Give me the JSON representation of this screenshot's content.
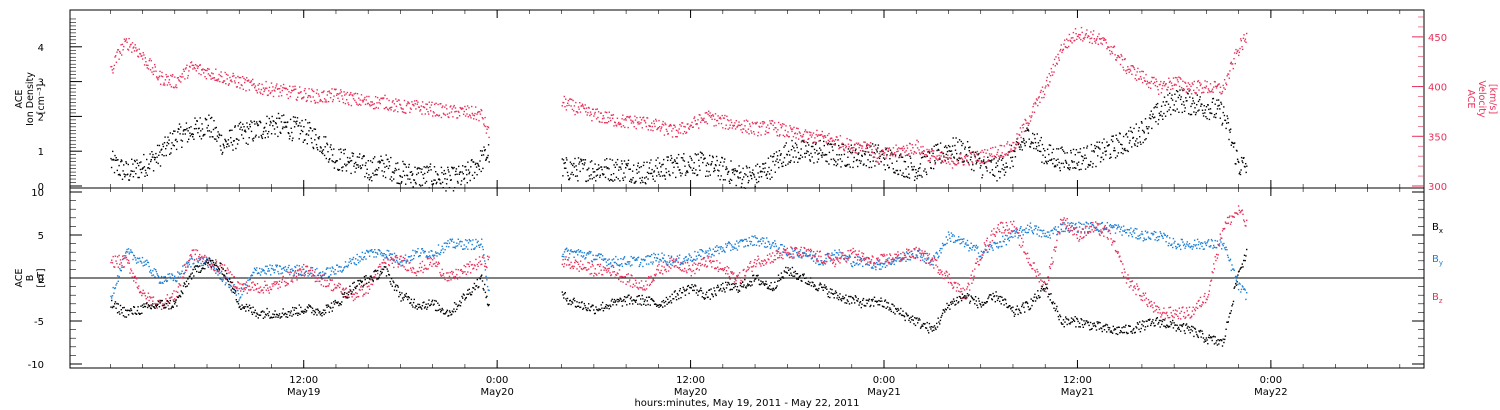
{
  "colors": {
    "black": "#000000",
    "red": "#e8305a",
    "blue": "#1a7fd6",
    "background": "#ffffff"
  },
  "chart_data": [
    {
      "panel": "top",
      "type": "scatter",
      "ylabel_left": [
        "ACE",
        "Ion Density",
        "[cm⁻³]"
      ],
      "ylabel_right": [
        "ACE",
        "Velocity",
        "[km/s]"
      ],
      "ylim_left": [
        0,
        5
      ],
      "yticks_left": [
        0,
        1,
        2,
        3,
        4
      ],
      "ylim_right": [
        300,
        475
      ],
      "yticks_right": [
        300,
        350,
        400,
        450
      ],
      "grid": false,
      "series": [
        {
          "axis": "left",
          "color": "#000000",
          "x_hours": [
            0,
            1,
            2,
            3,
            4,
            5,
            6,
            7,
            8,
            9,
            10,
            11,
            12,
            13,
            14,
            15,
            16,
            17,
            18,
            19,
            20,
            21,
            22,
            23.5,
            28,
            29,
            30,
            31,
            32,
            33,
            34,
            35,
            36,
            37,
            38,
            39,
            40,
            41,
            42,
            43,
            44,
            45,
            46,
            47.5,
            50,
            51,
            52,
            53,
            54,
            55,
            56,
            57,
            58,
            59,
            60,
            61,
            62,
            63,
            64,
            65,
            66,
            67,
            68,
            69,
            70,
            70.5
          ],
          "values": [
            0.7,
            0.4,
            0.6,
            0.9,
            1.4,
            1.6,
            1.8,
            1.2,
            1.5,
            1.6,
            1.8,
            1.7,
            1.6,
            1.3,
            0.8,
            0.7,
            0.5,
            0.6,
            0.4,
            0.3,
            0.3,
            0.2,
            0.3,
            1.0,
            0.5,
            0.5,
            0.5,
            0.5,
            0.5,
            0.4,
            0.5,
            0.6,
            0.7,
            0.6,
            0.5,
            0.3,
            0.3,
            0.6,
            1.0,
            1.0,
            1.0,
            0.9,
            0.9,
            0.9,
            0.5,
            0.8,
            1.1,
            1.0,
            0.6,
            0.5,
            0.9,
            1.5,
            0.9,
            0.8,
            0.8,
            0.9,
            1.1,
            1.3,
            1.6,
            2.1,
            2.5,
            2.4,
            2.3,
            2.1,
            0.6,
            0.6
          ]
        },
        {
          "axis": "right",
          "color": "#e8305a",
          "x_hours": [
            0,
            0.5,
            1,
            1.5,
            2,
            3,
            4,
            5,
            6,
            7,
            8,
            9,
            10,
            11,
            12,
            13,
            14,
            15,
            16,
            17,
            18,
            19,
            20,
            21,
            22,
            23,
            23.5,
            28,
            29,
            30,
            31,
            32,
            33,
            34,
            35,
            36,
            37,
            38,
            39,
            40,
            41,
            42,
            43,
            44,
            45,
            46,
            47,
            47.5,
            50,
            51,
            52,
            53,
            54,
            55,
            56,
            57,
            58,
            59,
            60,
            61,
            62,
            63,
            64,
            65,
            66,
            67,
            68,
            69,
            70,
            70.5
          ],
          "values": [
            415,
            435,
            445,
            440,
            430,
            410,
            405,
            420,
            415,
            410,
            405,
            400,
            398,
            395,
            393,
            390,
            392,
            388,
            385,
            385,
            380,
            380,
            378,
            375,
            375,
            372,
            350,
            385,
            378,
            372,
            368,
            365,
            365,
            360,
            355,
            362,
            370,
            365,
            362,
            358,
            360,
            355,
            350,
            350,
            346,
            340,
            342,
            330,
            340,
            330,
            325,
            328,
            330,
            335,
            340,
            370,
            400,
            440,
            455,
            450,
            440,
            420,
            410,
            400,
            405,
            400,
            400,
            398,
            440,
            450
          ]
        }
      ]
    },
    {
      "panel": "bottom",
      "type": "scatter",
      "ylabel_left": [
        "ACE",
        "B",
        "[nT]"
      ],
      "ylim": [
        -10,
        10
      ],
      "yticks": [
        -10,
        -5,
        0,
        5,
        10
      ],
      "zero_line": true,
      "grid": false,
      "legend_position": "right",
      "series": [
        {
          "name": "Bx",
          "label_text": "B",
          "label_sub": "x",
          "color": "#000000",
          "x_hours": [
            0,
            1,
            2,
            3,
            4,
            5,
            6,
            7,
            8,
            9,
            10,
            11,
            12,
            13,
            14,
            15,
            16,
            17,
            18,
            19,
            20,
            21,
            22,
            23,
            23.5,
            28,
            29,
            30,
            31,
            32,
            33,
            34,
            35,
            36,
            37,
            38,
            39,
            40,
            41,
            42,
            43,
            44,
            45,
            46,
            47,
            47.5,
            50,
            51,
            52,
            53,
            54,
            55,
            56,
            57,
            58,
            59,
            60,
            61,
            62,
            63,
            64,
            65,
            66,
            67,
            68,
            69,
            70,
            70.5
          ],
          "values": [
            -3,
            -4,
            -3.5,
            -3,
            -3,
            0.5,
            2,
            1,
            -3,
            -4,
            -4,
            -4,
            -3.5,
            -3.8,
            -3,
            -1,
            0,
            1,
            -2,
            -3,
            -3,
            -4,
            -2,
            0,
            -3.5,
            -2,
            -3,
            -3.5,
            -3,
            -2.5,
            -2.5,
            -3,
            -2,
            -1,
            -2,
            -1,
            -1,
            0,
            -1,
            1,
            0,
            -1,
            -2,
            -2.5,
            -3,
            -2.5,
            -5,
            -6,
            -3,
            -2,
            -3,
            -2,
            -4,
            -3,
            -1,
            -5,
            -5,
            -5.5,
            -6,
            -6,
            -5.5,
            -5,
            -5.5,
            -6,
            -7,
            -7.5,
            1,
            3
          ]
        },
        {
          "name": "By",
          "label_text": "B",
          "label_sub": "y",
          "color": "#1a7fd6",
          "x_hours": [
            0,
            1,
            2,
            3,
            4,
            5,
            6,
            7,
            8,
            9,
            10,
            11,
            12,
            13,
            14,
            15,
            16,
            17,
            18,
            19,
            20,
            21,
            22,
            23,
            23.5,
            28,
            29,
            30,
            31,
            32,
            33,
            34,
            35,
            36,
            37,
            38,
            39,
            40,
            41,
            42,
            43,
            44,
            45,
            46,
            47,
            47.5,
            50,
            51,
            52,
            53,
            54,
            55,
            56,
            57,
            58,
            59,
            60,
            61,
            62,
            63,
            64,
            65,
            66,
            67,
            68,
            69,
            70,
            70.5
          ],
          "values": [
            -2,
            3,
            2,
            0,
            0,
            2,
            2,
            0,
            -2,
            1,
            1,
            1,
            1,
            0.5,
            1,
            2,
            3,
            3,
            2,
            3,
            3,
            4,
            4,
            4,
            -2,
            3,
            3,
            2.5,
            2,
            2,
            2,
            2.5,
            2,
            2.5,
            3,
            3.5,
            4,
            4.5,
            4,
            3,
            3,
            2,
            3,
            2,
            2,
            1.5,
            3,
            2,
            5,
            4,
            3,
            4,
            5,
            6,
            5,
            6,
            6,
            6,
            6,
            5.5,
            5,
            5,
            4,
            4,
            4,
            4,
            -1,
            -2
          ]
        },
        {
          "name": "Bz",
          "label_text": "B",
          "label_sub": "z",
          "color": "#e8305a",
          "x_hours": [
            0,
            1,
            2,
            3,
            4,
            5,
            6,
            7,
            8,
            9,
            10,
            11,
            12,
            13,
            14,
            15,
            16,
            17,
            18,
            19,
            20,
            21,
            22,
            23,
            23.5,
            28,
            29,
            30,
            31,
            32,
            33,
            34,
            35,
            36,
            37,
            38,
            39,
            40,
            41,
            42,
            43,
            44,
            45,
            46,
            47,
            47.5,
            50,
            51,
            52,
            53,
            54,
            55,
            56,
            57,
            58,
            59,
            60,
            61,
            62,
            63,
            64,
            65,
            66,
            67,
            68,
            69,
            70,
            70.5
          ],
          "values": [
            2,
            2,
            -2,
            -3,
            -2,
            3,
            2,
            1,
            -1,
            -1,
            -1,
            0,
            1,
            0,
            -1,
            -2,
            -1,
            2,
            2,
            1,
            2,
            0,
            1,
            2,
            2,
            2,
            1.5,
            1,
            1,
            0,
            -1,
            1,
            2,
            1,
            2,
            1,
            0,
            2,
            2.5,
            3,
            3,
            2.5,
            2,
            3,
            2,
            2,
            3,
            2,
            0,
            -2,
            3,
            6,
            6,
            2,
            -1,
            7,
            5,
            6,
            5,
            0,
            -2,
            -4,
            -4,
            -4,
            -2,
            6,
            8,
            6
          ]
        }
      ]
    }
  ],
  "x_axis": {
    "range_hours": [
      -2.5,
      81.5
    ],
    "ticks": [
      {
        "hour": 12,
        "label": "12:00",
        "date": "May19"
      },
      {
        "hour": 24,
        "label": "0:00",
        "date": "May20"
      },
      {
        "hour": 36,
        "label": "12:00",
        "date": "May20"
      },
      {
        "hour": 48,
        "label": "0:00",
        "date": "May21"
      },
      {
        "hour": 60,
        "label": "12:00",
        "date": "May21"
      },
      {
        "hour": 72,
        "label": "0:00",
        "date": "May22"
      }
    ],
    "title": "hours:minutes, May 19, 2011 - May 22, 2011"
  }
}
